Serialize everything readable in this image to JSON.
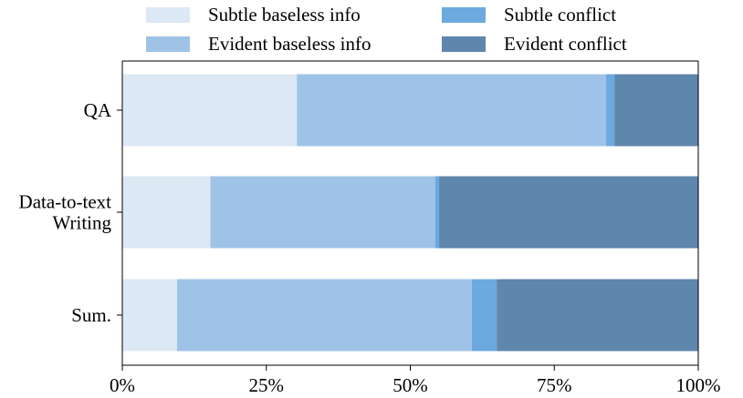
{
  "chart_data": {
    "type": "bar",
    "orientation": "horizontal",
    "stacked": true,
    "title": "",
    "xlabel": "",
    "ylabel": "",
    "xlim": [
      0,
      100
    ],
    "x_tick_labels": [
      "0%",
      "25%",
      "50%",
      "75%",
      "100%"
    ],
    "x_ticks": [
      0,
      25,
      50,
      75,
      100
    ],
    "categories": [
      [
        "QA"
      ],
      [
        "Data-to-text",
        "Writing"
      ],
      [
        "Sum."
      ]
    ],
    "series": [
      {
        "name": "Subtle baseless info",
        "color": "#dde8f5",
        "values": [
          30.3,
          15.3,
          9.5
        ]
      },
      {
        "name": "Evident baseless info",
        "color": "#9fc3e7",
        "values": [
          53.7,
          39.0,
          51.2
        ]
      },
      {
        "name": "Subtle conflict",
        "color": "#6ba9de",
        "values": [
          1.5,
          0.7,
          4.3
        ]
      },
      {
        "name": "Evident conflict",
        "color": "#5f86ac",
        "values": [
          14.5,
          45.0,
          35.0
        ]
      }
    ],
    "grid": false,
    "legend_position": "top"
  }
}
